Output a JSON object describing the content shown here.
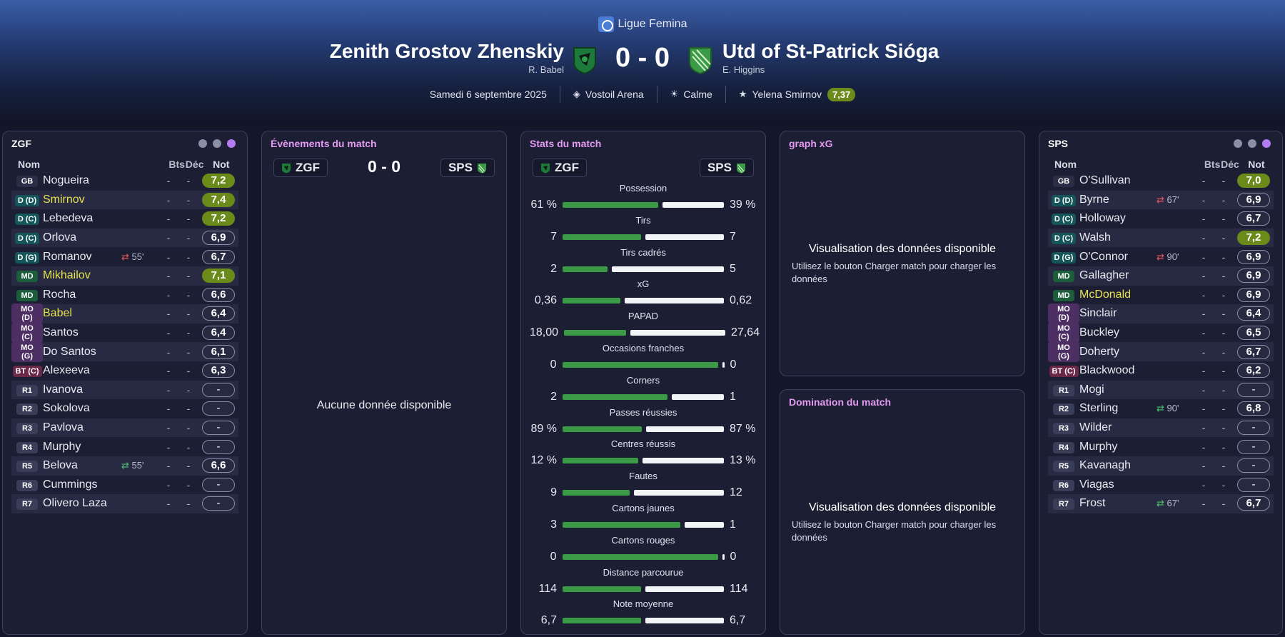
{
  "header": {
    "league": "Ligue Femina",
    "home_team": "Zenith Grostov Zhenskiy",
    "home_manager": "R. Babel",
    "away_team": "Utd of St-Patrick Sióga",
    "away_manager": "E. Higgins",
    "score": "0 - 0",
    "date": "Samedi 6 septembre 2025",
    "stadium": "Vostoil Arena",
    "weather": "Calme",
    "player_of_match": "Yelena Smirnov",
    "player_of_match_rating": "7,37",
    "colors": {
      "home_crest": "#1e7a3a",
      "away_crest": "#3a9a45",
      "rating_good": "#6a8a1a",
      "accent_pink": "#e59bf2"
    }
  },
  "home_panel": {
    "title": "ZGF",
    "headers": {
      "nom": "Nom",
      "bts": "Bts",
      "dec": "Déc",
      "not": "Not"
    },
    "players": [
      {
        "pos": "GB",
        "cls": "gk",
        "name": "Nogueira",
        "sub": "",
        "subdir": "",
        "bts": "-",
        "dec": "-",
        "rating": "7,2",
        "good": true,
        "hl": false
      },
      {
        "pos": "D (D)",
        "cls": "def",
        "name": "Smirnov",
        "sub": "",
        "subdir": "",
        "bts": "-",
        "dec": "-",
        "rating": "7,4",
        "good": true,
        "hl": true
      },
      {
        "pos": "D (C)",
        "cls": "def",
        "name": "Lebedeva",
        "sub": "",
        "subdir": "",
        "bts": "-",
        "dec": "-",
        "rating": "7,2",
        "good": true,
        "hl": false
      },
      {
        "pos": "D (C)",
        "cls": "def",
        "name": "Orlova",
        "sub": "",
        "subdir": "",
        "bts": "-",
        "dec": "-",
        "rating": "6,9",
        "good": false,
        "hl": false
      },
      {
        "pos": "D (G)",
        "cls": "def",
        "name": "Romanov",
        "sub": "55'",
        "subdir": "out",
        "bts": "-",
        "dec": "-",
        "rating": "6,7",
        "good": false,
        "hl": false
      },
      {
        "pos": "MD",
        "cls": "md",
        "name": "Mikhailov",
        "sub": "",
        "subdir": "",
        "bts": "-",
        "dec": "-",
        "rating": "7,1",
        "good": true,
        "hl": true
      },
      {
        "pos": "MD",
        "cls": "md",
        "name": "Rocha",
        "sub": "",
        "subdir": "",
        "bts": "-",
        "dec": "-",
        "rating": "6,6",
        "good": false,
        "hl": false
      },
      {
        "pos": "MO (D)",
        "cls": "mo",
        "name": "Babel",
        "sub": "",
        "subdir": "",
        "bts": "-",
        "dec": "-",
        "rating": "6,4",
        "good": false,
        "hl": true
      },
      {
        "pos": "MO (C)",
        "cls": "mo",
        "name": "Santos",
        "sub": "",
        "subdir": "",
        "bts": "-",
        "dec": "-",
        "rating": "6,4",
        "good": false,
        "hl": false
      },
      {
        "pos": "MO (G)",
        "cls": "mo",
        "name": "Do Santos",
        "sub": "",
        "subdir": "",
        "bts": "-",
        "dec": "-",
        "rating": "6,1",
        "good": false,
        "hl": false
      },
      {
        "pos": "BT (C)",
        "cls": "bt",
        "name": "Alexeeva",
        "sub": "",
        "subdir": "",
        "bts": "-",
        "dec": "-",
        "rating": "6,3",
        "good": false,
        "hl": false
      },
      {
        "pos": "R1",
        "cls": "res",
        "name": "Ivanova",
        "sub": "",
        "subdir": "",
        "bts": "-",
        "dec": "-",
        "rating": "-",
        "good": false,
        "hl": false
      },
      {
        "pos": "R2",
        "cls": "res",
        "name": "Sokolova",
        "sub": "",
        "subdir": "",
        "bts": "-",
        "dec": "-",
        "rating": "-",
        "good": false,
        "hl": false
      },
      {
        "pos": "R3",
        "cls": "res",
        "name": "Pavlova",
        "sub": "",
        "subdir": "",
        "bts": "-",
        "dec": "-",
        "rating": "-",
        "good": false,
        "hl": false
      },
      {
        "pos": "R4",
        "cls": "res",
        "name": "Murphy",
        "sub": "",
        "subdir": "",
        "bts": "-",
        "dec": "-",
        "rating": "-",
        "good": false,
        "hl": false
      },
      {
        "pos": "R5",
        "cls": "res",
        "name": "Belova",
        "sub": "55'",
        "subdir": "in",
        "bts": "-",
        "dec": "-",
        "rating": "6,6",
        "good": false,
        "hl": false
      },
      {
        "pos": "R6",
        "cls": "res",
        "name": "Cummings",
        "sub": "",
        "subdir": "",
        "bts": "-",
        "dec": "-",
        "rating": "-",
        "good": false,
        "hl": false
      },
      {
        "pos": "R7",
        "cls": "res",
        "name": "Olivero Laza",
        "sub": "",
        "subdir": "",
        "bts": "-",
        "dec": "-",
        "rating": "-",
        "good": false,
        "hl": false
      }
    ]
  },
  "away_panel": {
    "title": "SPS",
    "headers": {
      "nom": "Nom",
      "bts": "Bts",
      "dec": "Déc",
      "not": "Not"
    },
    "players": [
      {
        "pos": "GB",
        "cls": "gk",
        "name": "O'Sullivan",
        "sub": "",
        "subdir": "",
        "bts": "-",
        "dec": "-",
        "rating": "7,0",
        "good": true,
        "hl": false
      },
      {
        "pos": "D (D)",
        "cls": "def",
        "name": "Byrne",
        "sub": "67'",
        "subdir": "out",
        "bts": "-",
        "dec": "-",
        "rating": "6,9",
        "good": false,
        "hl": false
      },
      {
        "pos": "D (C)",
        "cls": "def",
        "name": "Holloway",
        "sub": "",
        "subdir": "",
        "bts": "-",
        "dec": "-",
        "rating": "6,7",
        "good": false,
        "hl": false
      },
      {
        "pos": "D (C)",
        "cls": "def",
        "name": "Walsh",
        "sub": "",
        "subdir": "",
        "bts": "-",
        "dec": "-",
        "rating": "7,2",
        "good": true,
        "hl": false
      },
      {
        "pos": "D (G)",
        "cls": "def",
        "name": "O'Connor",
        "sub": "90'",
        "subdir": "out",
        "bts": "-",
        "dec": "-",
        "rating": "6,9",
        "good": false,
        "hl": false
      },
      {
        "pos": "MD",
        "cls": "md",
        "name": "Gallagher",
        "sub": "",
        "subdir": "",
        "bts": "-",
        "dec": "-",
        "rating": "6,9",
        "good": false,
        "hl": false
      },
      {
        "pos": "MD",
        "cls": "md",
        "name": "McDonald",
        "sub": "",
        "subdir": "",
        "bts": "-",
        "dec": "-",
        "rating": "6,9",
        "good": false,
        "hl": true
      },
      {
        "pos": "MO (D)",
        "cls": "mo",
        "name": "Sinclair",
        "sub": "",
        "subdir": "",
        "bts": "-",
        "dec": "-",
        "rating": "6,4",
        "good": false,
        "hl": false
      },
      {
        "pos": "MO (C)",
        "cls": "mo",
        "name": "Buckley",
        "sub": "",
        "subdir": "",
        "bts": "-",
        "dec": "-",
        "rating": "6,5",
        "good": false,
        "hl": false
      },
      {
        "pos": "MO (G)",
        "cls": "mo",
        "name": "Doherty",
        "sub": "",
        "subdir": "",
        "bts": "-",
        "dec": "-",
        "rating": "6,7",
        "good": false,
        "hl": false
      },
      {
        "pos": "BT (C)",
        "cls": "bt",
        "name": "Blackwood",
        "sub": "",
        "subdir": "",
        "bts": "-",
        "dec": "-",
        "rating": "6,2",
        "good": false,
        "hl": false
      },
      {
        "pos": "R1",
        "cls": "res",
        "name": "Mogi",
        "sub": "",
        "subdir": "",
        "bts": "-",
        "dec": "-",
        "rating": "-",
        "good": false,
        "hl": false
      },
      {
        "pos": "R2",
        "cls": "res",
        "name": "Sterling",
        "sub": "90'",
        "subdir": "in",
        "bts": "-",
        "dec": "-",
        "rating": "6,8",
        "good": false,
        "hl": false
      },
      {
        "pos": "R3",
        "cls": "res",
        "name": "Wilder",
        "sub": "",
        "subdir": "",
        "bts": "-",
        "dec": "-",
        "rating": "-",
        "good": false,
        "hl": false
      },
      {
        "pos": "R4",
        "cls": "res",
        "name": "Murphy",
        "sub": "",
        "subdir": "",
        "bts": "-",
        "dec": "-",
        "rating": "-",
        "good": false,
        "hl": false
      },
      {
        "pos": "R5",
        "cls": "res",
        "name": "Kavanagh",
        "sub": "",
        "subdir": "",
        "bts": "-",
        "dec": "-",
        "rating": "-",
        "good": false,
        "hl": false
      },
      {
        "pos": "R6",
        "cls": "res",
        "name": "Viagas",
        "sub": "",
        "subdir": "",
        "bts": "-",
        "dec": "-",
        "rating": "-",
        "good": false,
        "hl": false
      },
      {
        "pos": "R7",
        "cls": "res",
        "name": "Frost",
        "sub": "67'",
        "subdir": "in",
        "bts": "-",
        "dec": "-",
        "rating": "6,7",
        "good": false,
        "hl": false
      }
    ]
  },
  "events": {
    "title": "Évènements du match",
    "home_abbr": "ZGF",
    "away_abbr": "SPS",
    "score": "0 - 0",
    "empty_message": "Aucune donnée disponible"
  },
  "stats": {
    "title": "Stats du match",
    "home_abbr": "ZGF",
    "away_abbr": "SPS",
    "rows": [
      {
        "label": "Possession",
        "home": "61 %",
        "away": "39 %",
        "home_share": 0.61
      },
      {
        "label": "Tirs",
        "home": "7",
        "away": "7",
        "home_share": 0.5
      },
      {
        "label": "Tirs cadrés",
        "home": "2",
        "away": "5",
        "home_share": 0.286
      },
      {
        "label": "xG",
        "home": "0,36",
        "away": "0,62",
        "home_share": 0.367
      },
      {
        "label": "PAPAD",
        "home": "18,00",
        "away": "27,64",
        "home_share": 0.394
      },
      {
        "label": "Occasions franches",
        "home": "0",
        "away": "0",
        "home_share": 0.99
      },
      {
        "label": "Corners",
        "home": "2",
        "away": "1",
        "home_share": 0.667
      },
      {
        "label": "Passes réussies",
        "home": "89 %",
        "away": "87 %",
        "home_share": 0.506
      },
      {
        "label": "Centres réussis",
        "home": "12 %",
        "away": "13 %",
        "home_share": 0.48
      },
      {
        "label": "Fautes",
        "home": "9",
        "away": "12",
        "home_share": 0.429
      },
      {
        "label": "Cartons jaunes",
        "home": "3",
        "away": "1",
        "home_share": 0.75
      },
      {
        "label": "Cartons rouges",
        "home": "0",
        "away": "0",
        "home_share": 0.99
      },
      {
        "label": "Distance parcourue",
        "home": "114",
        "away": "114",
        "home_share": 0.5
      },
      {
        "label": "Note moyenne",
        "home": "6,7",
        "away": "6,7",
        "home_share": 0.5
      }
    ]
  },
  "xg": {
    "title": "graph xG",
    "headline": "Visualisation des données disponible",
    "hint": "Utilisez le bouton Charger match pour charger les données"
  },
  "domination": {
    "title": "Domination du match",
    "headline": "Visualisation des données disponible",
    "hint": "Utilisez le bouton Charger match pour charger les données"
  }
}
